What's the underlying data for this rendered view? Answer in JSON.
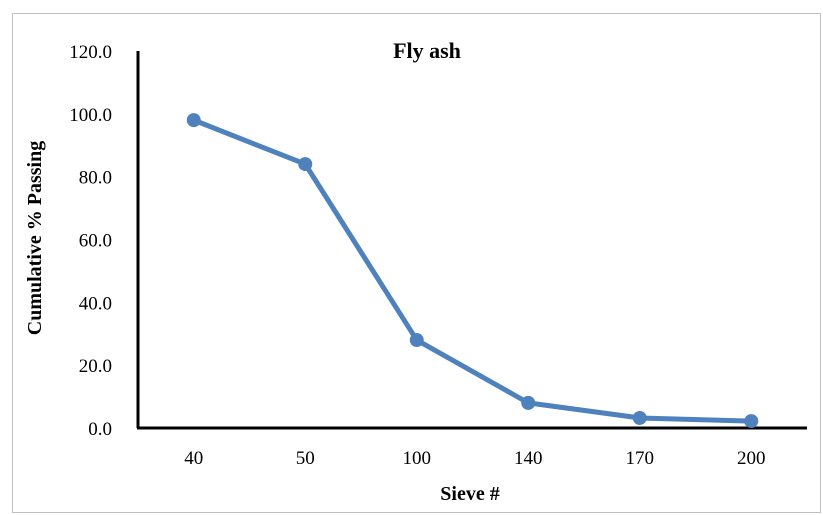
{
  "chart_data": {
    "type": "line",
    "title": "Fly ash",
    "xlabel": "Sieve #",
    "ylabel": "Cumulative % Passing",
    "categories": [
      "40",
      "50",
      "100",
      "140",
      "170",
      "200"
    ],
    "series": [
      {
        "values": [
          98.0,
          84.0,
          28.0,
          8.0,
          3.2,
          2.2
        ]
      }
    ],
    "yticks": [
      "0.0",
      "20.0",
      "40.0",
      "60.0",
      "80.0",
      "100.0",
      "120.0"
    ],
    "ylim": [
      0,
      120
    ],
    "grid": false,
    "legend": "none",
    "colors": {
      "series": "#4f81bd",
      "axis": "#000000",
      "frame": "#bfbfbf"
    }
  }
}
